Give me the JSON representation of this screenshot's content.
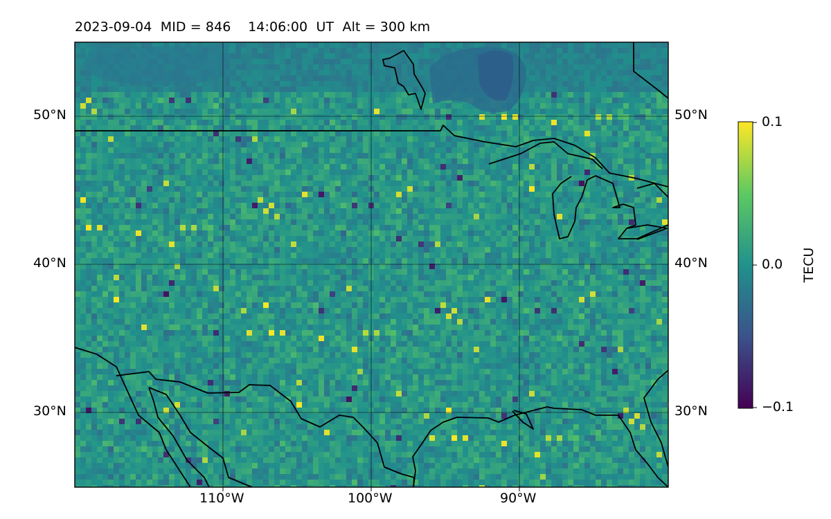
{
  "header": {
    "date": "2023-09-04",
    "mid_label": "MID = 846",
    "time_label": "14:06:00  UT",
    "alt_label": "Alt = 300 km"
  },
  "map": {
    "lon_range": [
      -120,
      -80
    ],
    "lat_range": [
      25,
      55
    ],
    "grid_lons": [
      -110,
      -100,
      -90
    ],
    "grid_lats": [
      30,
      40,
      50
    ],
    "lon_tick_labels": [
      "110°W",
      "100°W",
      "90°W"
    ],
    "lat_tick_labels": [
      "30°N",
      "40°N",
      "50°N"
    ],
    "field_min": -0.1,
    "field_max": 0.1
  },
  "colorbar": {
    "label": "TECU",
    "ticks": [
      "0.1",
      "0.0",
      "−0.1"
    ],
    "colormap": "viridis",
    "colors": [
      "#440154",
      "#3b528b",
      "#21918c",
      "#5ec962",
      "#fde725"
    ]
  }
}
